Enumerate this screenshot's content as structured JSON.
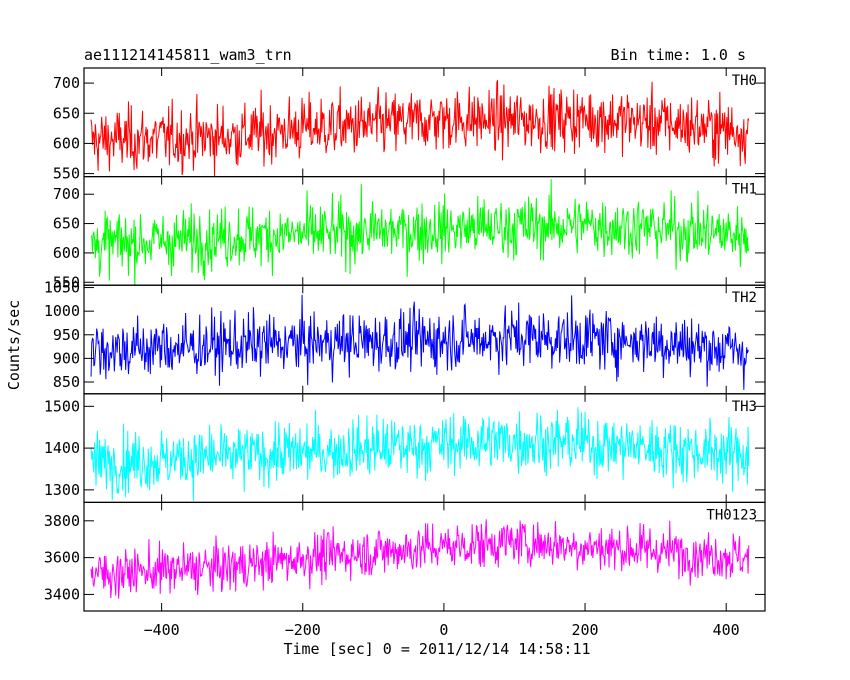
{
  "chart_data": {
    "type": "line",
    "title": "ae111214145811_wam3_trn",
    "bin_time_label": "Bin time: 1.0 s",
    "xlabel": "Time [sec] 0 = 2011/12/14 14:58:11",
    "ylabel": "Counts/sec",
    "xlim": [
      -510,
      455
    ],
    "x_ticks": [
      -400,
      -200,
      0,
      200,
      400
    ],
    "x_range_data": [
      -500,
      432
    ],
    "x_step": 1.0,
    "grid": false,
    "panels": [
      {
        "name": "TH0",
        "color": "#ff0000",
        "ylim": [
          545,
          725
        ],
        "y_ticks": [
          550,
          600,
          650,
          700
        ],
        "trend": [
          [
            -500,
            605
          ],
          [
            -400,
            608
          ],
          [
            -300,
            612
          ],
          [
            -200,
            625
          ],
          [
            -100,
            630
          ],
          [
            0,
            640
          ],
          [
            100,
            638
          ],
          [
            200,
            642
          ],
          [
            300,
            635
          ],
          [
            432,
            620
          ]
        ],
        "noise_sd": 26
      },
      {
        "name": "TH1",
        "color": "#00ff00",
        "ylim": [
          545,
          730
        ],
        "y_ticks": [
          550,
          600,
          650,
          700
        ],
        "trend": [
          [
            -500,
            615
          ],
          [
            -400,
            620
          ],
          [
            -300,
            628
          ],
          [
            -200,
            632
          ],
          [
            -100,
            636
          ],
          [
            0,
            640
          ],
          [
            100,
            645
          ],
          [
            200,
            648
          ],
          [
            300,
            642
          ],
          [
            432,
            630
          ]
        ],
        "noise_sd": 26
      },
      {
        "name": "TH2",
        "color": "#0000ff",
        "ylim": [
          825,
          1055
        ],
        "y_ticks": [
          850,
          900,
          950,
          1000,
          1050
        ],
        "trend": [
          [
            -500,
            918
          ],
          [
            -400,
            922
          ],
          [
            -300,
            928
          ],
          [
            -200,
            932
          ],
          [
            -100,
            936
          ],
          [
            0,
            940
          ],
          [
            100,
            945
          ],
          [
            200,
            942
          ],
          [
            300,
            935
          ],
          [
            432,
            915
          ]
        ],
        "noise_sd": 32
      },
      {
        "name": "TH3",
        "color": "#00ffff",
        "ylim": [
          1270,
          1530
        ],
        "y_ticks": [
          1300,
          1400,
          1500
        ],
        "trend": [
          [
            -500,
            1365
          ],
          [
            -400,
            1372
          ],
          [
            -300,
            1380
          ],
          [
            -200,
            1390
          ],
          [
            -100,
            1400
          ],
          [
            0,
            1410
          ],
          [
            100,
            1418
          ],
          [
            200,
            1412
          ],
          [
            300,
            1400
          ],
          [
            432,
            1385
          ]
        ],
        "noise_sd": 36
      },
      {
        "name": "TH0123",
        "color": "#ff00ff",
        "ylim": [
          3310,
          3900
        ],
        "y_ticks": [
          3400,
          3600,
          3800
        ],
        "trend": [
          [
            -500,
            3510
          ],
          [
            -400,
            3530
          ],
          [
            -300,
            3550
          ],
          [
            -200,
            3600
          ],
          [
            -100,
            3630
          ],
          [
            0,
            3660
          ],
          [
            100,
            3685
          ],
          [
            200,
            3660
          ],
          [
            300,
            3640
          ],
          [
            432,
            3600
          ]
        ],
        "noise_sd": 65
      }
    ]
  }
}
